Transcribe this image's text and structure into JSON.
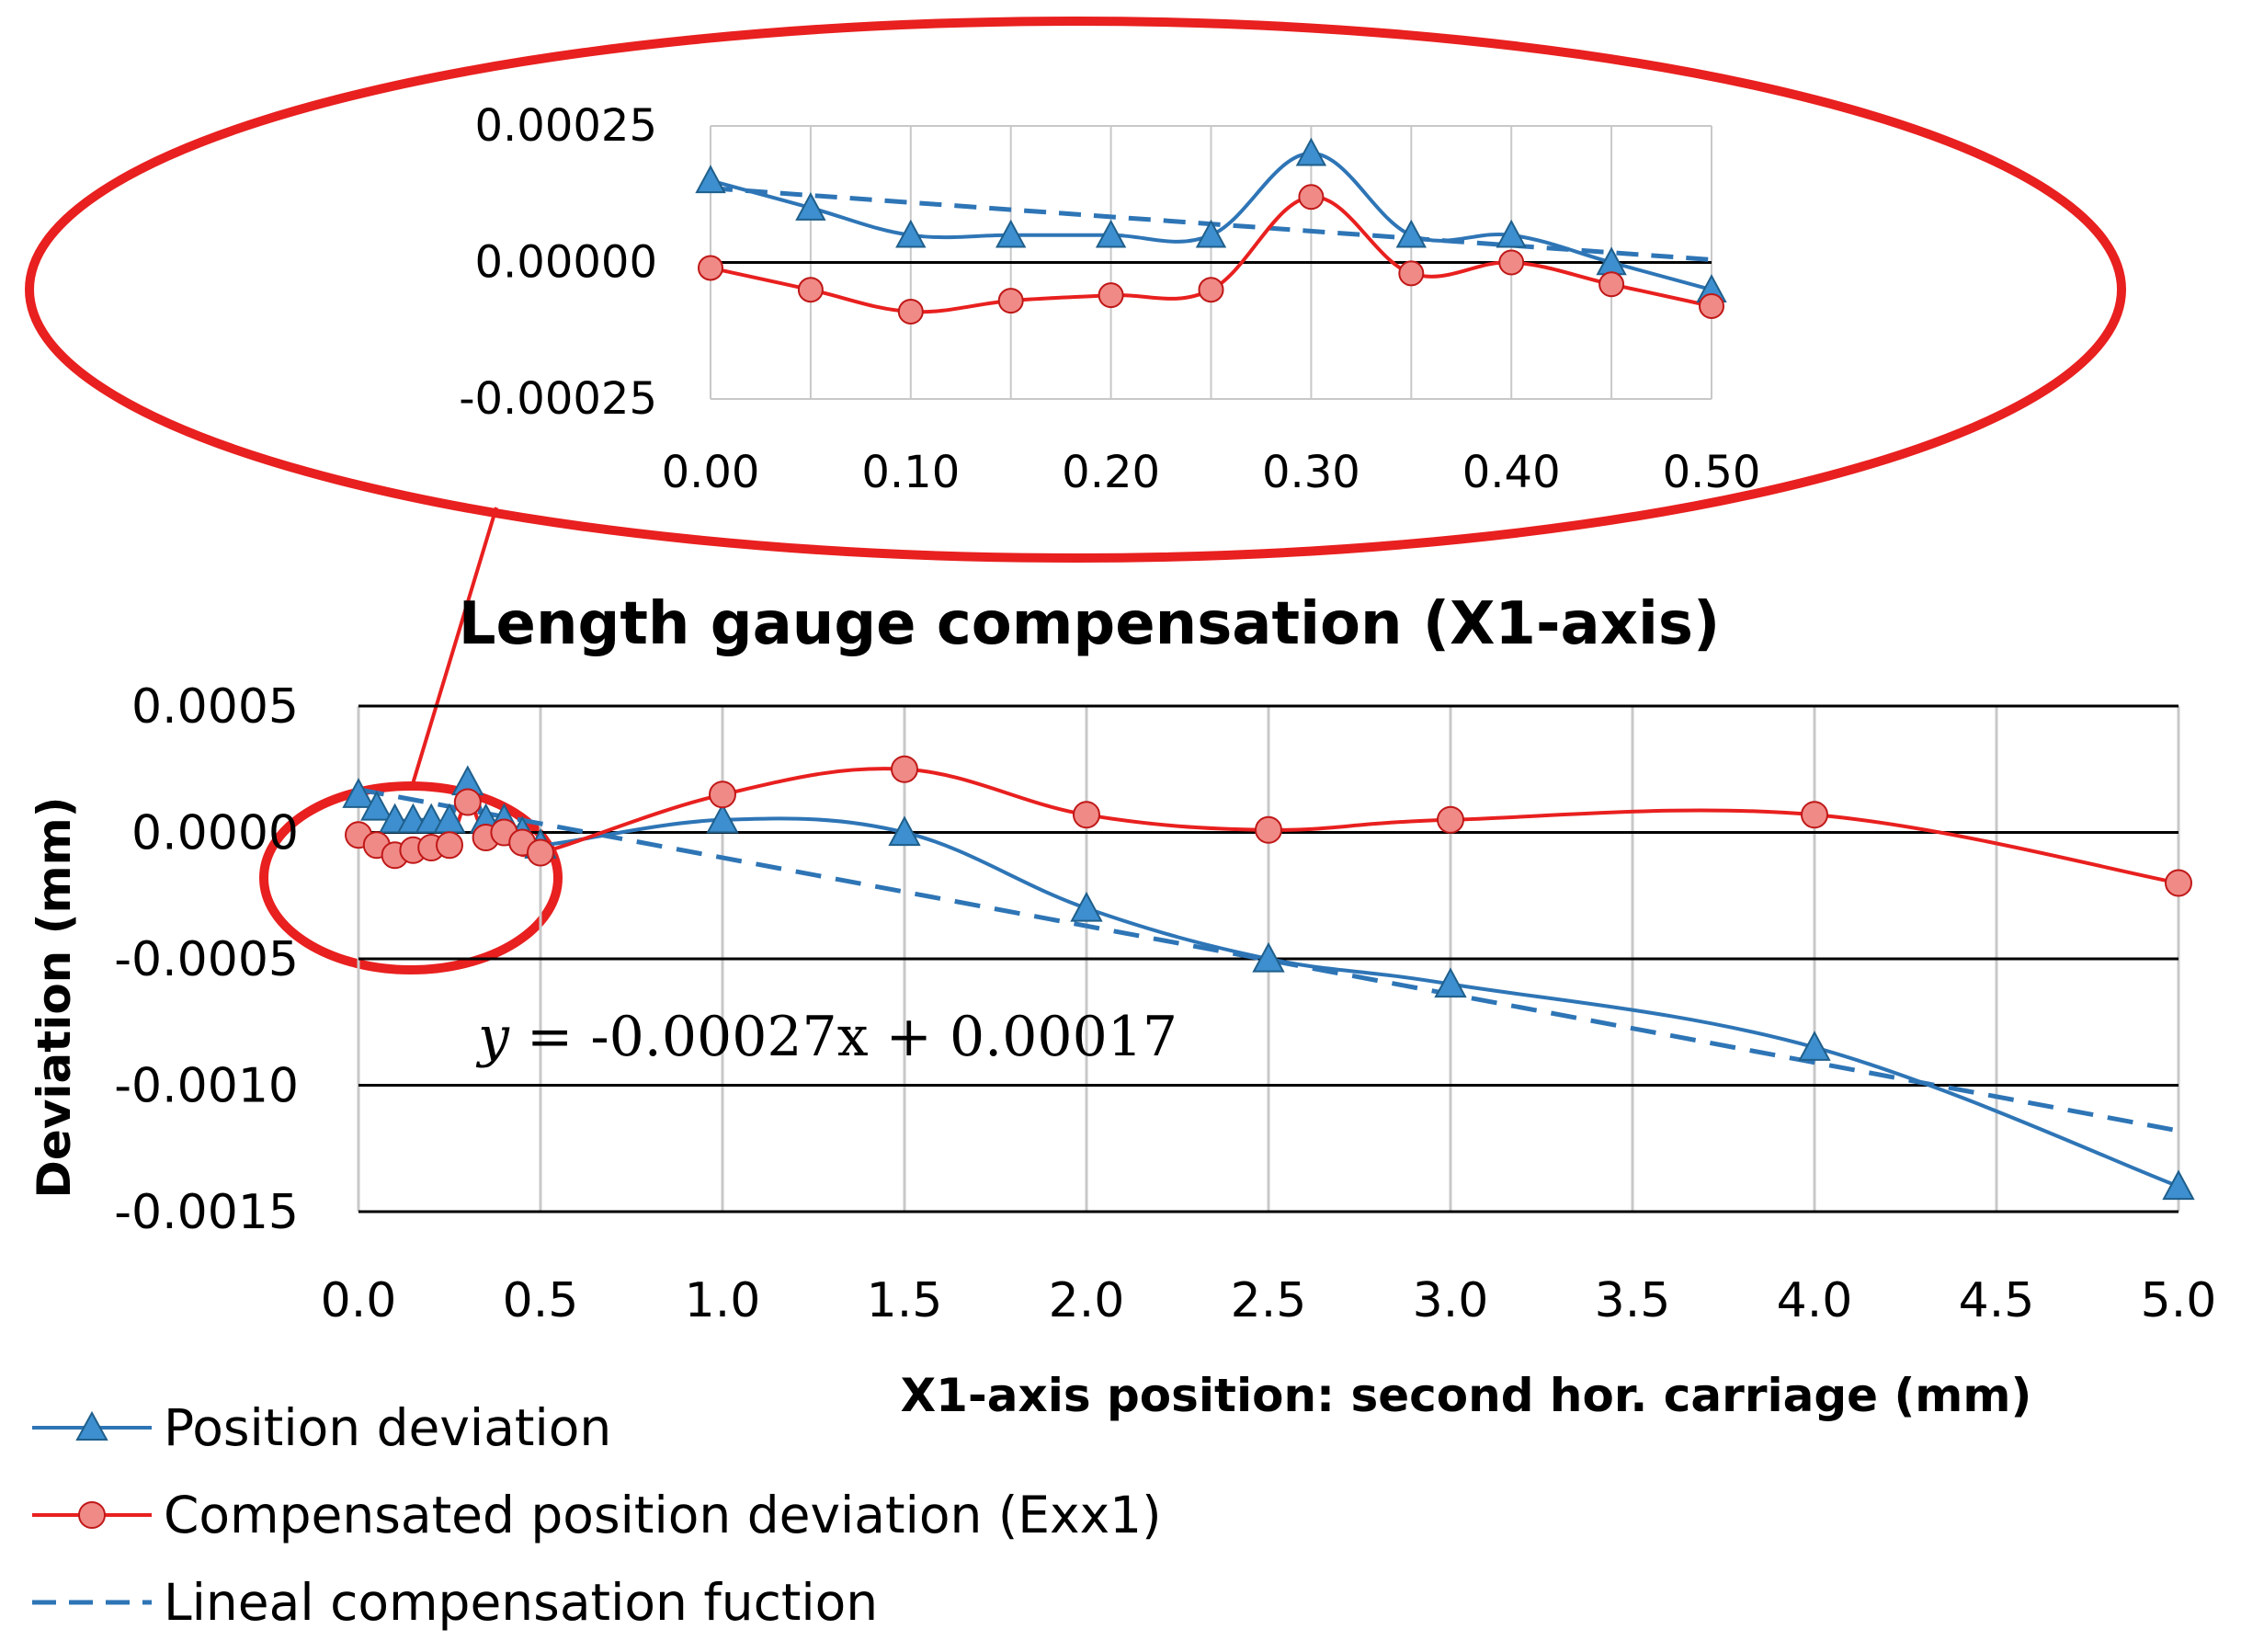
{
  "chart_data": [
    {
      "id": "main",
      "type": "line",
      "title": "Length gauge compensation (X1-axis)",
      "xlabel": "X1-axis position: second hor. carriage (mm)",
      "ylabel": "Deviation (mm)",
      "xlim": [
        0,
        5
      ],
      "ylim": [
        -0.0015,
        0.0005
      ],
      "x_ticks": [
        "0.0",
        "0.5",
        "1.0",
        "1.5",
        "2.0",
        "2.5",
        "3.0",
        "3.5",
        "4.0",
        "4.5",
        "5.0"
      ],
      "y_ticks": [
        "0.0005",
        "0.0000",
        "-0.0005",
        "-0.0010",
        "-0.0015"
      ],
      "series": [
        {
          "name": "Position deviation",
          "color": "#2e75b6",
          "marker": "triangle",
          "x": [
            0.0,
            0.05,
            0.1,
            0.15,
            0.2,
            0.25,
            0.3,
            0.35,
            0.4,
            0.45,
            0.5,
            1.0,
            1.5,
            2.0,
            2.5,
            3.0,
            4.0,
            5.0
          ],
          "y": [
            0.00015,
            0.0001,
            5e-05,
            5e-05,
            5e-05,
            5e-05,
            0.0002,
            5e-05,
            5e-05,
            0.0,
            -5e-05,
            5e-05,
            0.0,
            -0.0003,
            -0.0005,
            -0.0006,
            -0.00085,
            -0.0014
          ]
        },
        {
          "name": "Compensated position deviation (Exx1)",
          "color": "#e8201f",
          "marker": "circle",
          "x": [
            0.0,
            0.05,
            0.1,
            0.15,
            0.2,
            0.25,
            0.3,
            0.35,
            0.4,
            0.45,
            0.5,
            1.0,
            1.5,
            2.0,
            2.5,
            3.0,
            4.0,
            5.0
          ],
          "y": [
            -1e-05,
            -5e-05,
            -9e-05,
            -7e-05,
            -6e-05,
            -5e-05,
            0.00012,
            -2e-05,
            0.0,
            -4e-05,
            -8e-05,
            0.00015,
            0.00025,
            7e-05,
            1e-05,
            5e-05,
            7e-05,
            -0.0002
          ]
        },
        {
          "name": "Lineal compensation fuction",
          "color": "#2e75b6",
          "style": "dashed",
          "x": [
            0,
            5
          ],
          "y": [
            0.00017,
            -0.00118
          ]
        }
      ],
      "annotation": {
        "y_var": "y",
        "rest": " = -0.00027x + 0.00017"
      }
    },
    {
      "id": "inset",
      "type": "line",
      "title": "",
      "xlim": [
        0,
        0.5
      ],
      "ylim": [
        -0.00025,
        0.00025
      ],
      "x_ticks": [
        "0.00",
        "0.10",
        "0.20",
        "0.30",
        "0.40",
        "0.50"
      ],
      "y_ticks": [
        "0.00025",
        "0.00000",
        "-0.00025"
      ]
    }
  ],
  "legend": [
    {
      "label": "Position deviation",
      "color": "#2e75b6",
      "marker": "triangle",
      "style": "solid"
    },
    {
      "label": "Compensated position deviation (Exx1)",
      "color": "#e8201f",
      "marker": "circle",
      "style": "solid"
    },
    {
      "label": "Lineal compensation fuction",
      "color": "#2e75b6",
      "marker": "none",
      "style": "dashed"
    }
  ],
  "colors": {
    "highlight_ellipse": "#e8201f",
    "gridline": "#c8c8c8",
    "axis_line": "#000000"
  }
}
